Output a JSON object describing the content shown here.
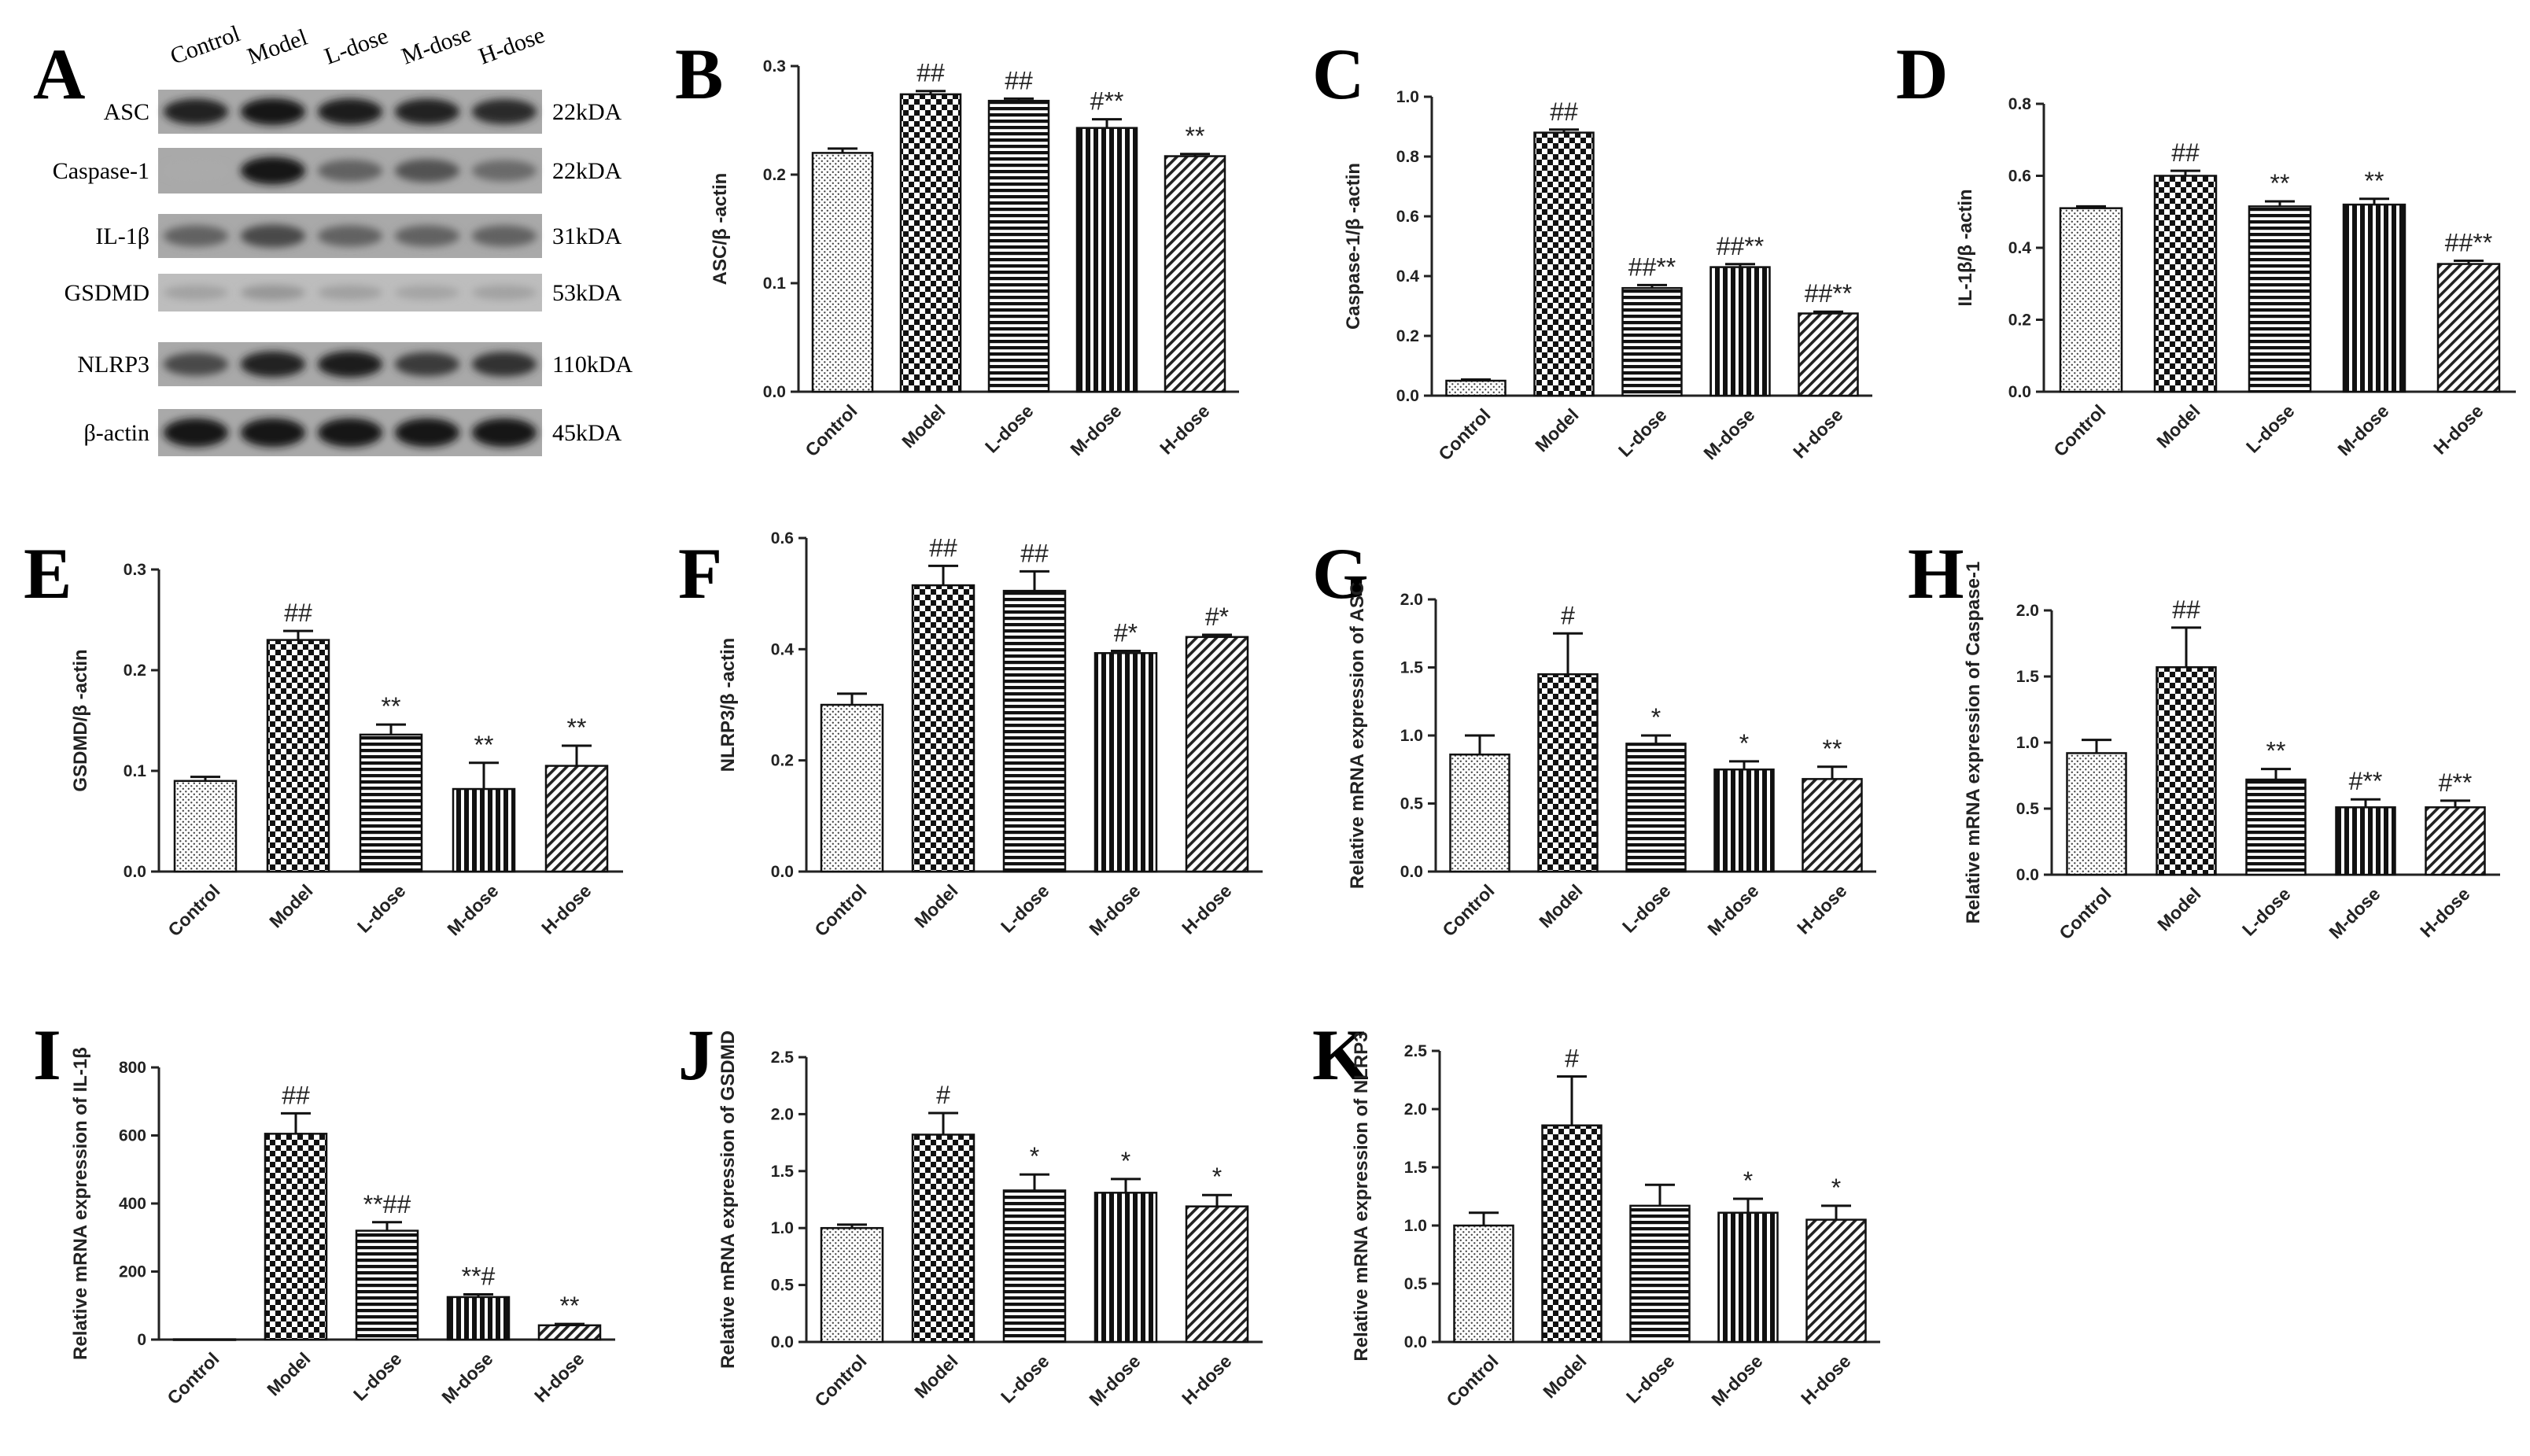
{
  "chart_data": [
    {
      "type": "bar",
      "panel": "B",
      "ylabel": "ASC/β -actin",
      "ylim": [
        0,
        0.3
      ],
      "yticks": [
        0.0,
        0.1,
        0.2,
        0.3
      ],
      "tickFormat": 1,
      "categories": [
        "Control",
        "Model",
        "L-dose",
        "M-dose",
        "H-dose"
      ],
      "values": [
        0.22,
        0.274,
        0.268,
        0.243,
        0.217
      ],
      "errors": [
        0.004,
        0.003,
        0.002,
        0.008,
        0.002
      ],
      "annotations": [
        "",
        "##",
        "##",
        "#**",
        "**"
      ]
    },
    {
      "type": "bar",
      "panel": "C",
      "ylabel": "Caspase-1/β -actin",
      "ylim": [
        0,
        1.0
      ],
      "yticks": [
        0.0,
        0.2,
        0.4,
        0.6,
        0.8,
        1.0
      ],
      "tickFormat": 1,
      "categories": [
        "Control",
        "Model",
        "L-dose",
        "M-dose",
        "H-dose"
      ],
      "values": [
        0.05,
        0.88,
        0.36,
        0.43,
        0.275
      ],
      "errors": [
        0.004,
        0.01,
        0.01,
        0.01,
        0.006
      ],
      "annotations": [
        "",
        "##",
        "##**",
        "##**",
        "##**"
      ]
    },
    {
      "type": "bar",
      "panel": "D",
      "ylabel": "IL-1β/β -actin",
      "ylim": [
        0,
        0.8
      ],
      "yticks": [
        0.0,
        0.2,
        0.4,
        0.6,
        0.8
      ],
      "tickFormat": 1,
      "categories": [
        "Control",
        "Model",
        "L-dose",
        "M-dose",
        "H-dose"
      ],
      "values": [
        0.51,
        0.6,
        0.515,
        0.52,
        0.355
      ],
      "errors": [
        0.005,
        0.014,
        0.014,
        0.016,
        0.009
      ],
      "annotations": [
        "",
        "##",
        "**",
        "**",
        "##**"
      ]
    },
    {
      "type": "bar",
      "panel": "E",
      "ylabel": "GSDMD/β -actin",
      "ylim": [
        0,
        0.3
      ],
      "yticks": [
        0.0,
        0.1,
        0.2,
        0.3
      ],
      "tickFormat": 1,
      "categories": [
        "Control",
        "Model",
        "L-dose",
        "M-dose",
        "H-dose"
      ],
      "values": [
        0.09,
        0.23,
        0.136,
        0.082,
        0.105
      ],
      "errors": [
        0.004,
        0.009,
        0.01,
        0.026,
        0.02
      ],
      "annotations": [
        "",
        "##",
        "**",
        "**",
        "**"
      ]
    },
    {
      "type": "bar",
      "panel": "F",
      "ylabel": "NLRP3/β -actin",
      "ylim": [
        0,
        0.6
      ],
      "yticks": [
        0.0,
        0.2,
        0.4,
        0.6
      ],
      "tickFormat": 1,
      "categories": [
        "Control",
        "Model",
        "L-dose",
        "M-dose",
        "H-dose"
      ],
      "values": [
        0.3,
        0.515,
        0.505,
        0.393,
        0.422
      ],
      "errors": [
        0.02,
        0.035,
        0.035,
        0.004,
        0.004
      ],
      "annotations": [
        "",
        "##",
        "##",
        "#*",
        "#*"
      ]
    },
    {
      "type": "bar",
      "panel": "G",
      "ylabel": "Relative mRNA expression of ASC",
      "ylim": [
        0,
        2.0
      ],
      "yticks": [
        0.0,
        0.5,
        1.0,
        1.5,
        2.0
      ],
      "tickFormat": 1,
      "categories": [
        "Control",
        "Model",
        "L-dose",
        "M-dose",
        "H-dose"
      ],
      "values": [
        0.86,
        1.45,
        0.94,
        0.75,
        0.68
      ],
      "errors": [
        0.14,
        0.3,
        0.06,
        0.06,
        0.09
      ],
      "annotations": [
        "",
        "#",
        "*",
        "*",
        "**"
      ]
    },
    {
      "type": "bar",
      "panel": "H",
      "ylabel": "Relative mRNA expression of Caspase-1",
      "ylim": [
        0,
        2.0
      ],
      "yticks": [
        0.0,
        0.5,
        1.0,
        1.5,
        2.0
      ],
      "tickFormat": 1,
      "categories": [
        "Control",
        "Model",
        "L-dose",
        "M-dose",
        "H-dose"
      ],
      "values": [
        0.92,
        1.57,
        0.72,
        0.51,
        0.51
      ],
      "errors": [
        0.1,
        0.3,
        0.08,
        0.06,
        0.05
      ],
      "annotations": [
        "",
        "##",
        "**",
        "#**",
        "#**"
      ]
    },
    {
      "type": "bar",
      "panel": "I",
      "ylabel": "Relative mRNA expression of IL-1β",
      "ylim": [
        0,
        800
      ],
      "yticks": [
        0,
        200,
        400,
        600,
        800
      ],
      "tickFormat": 0,
      "categories": [
        "Control",
        "Model",
        "L-dose",
        "M-dose",
        "H-dose"
      ],
      "values": [
        1,
        605,
        320,
        125,
        42
      ],
      "errors": [
        0,
        60,
        25,
        8,
        4
      ],
      "annotations": [
        "",
        "##",
        "**##",
        "**#",
        "**"
      ]
    },
    {
      "type": "bar",
      "panel": "J",
      "ylabel": "Relative mRNA expression of GSDMD",
      "ylim": [
        0,
        2.5
      ],
      "yticks": [
        0.0,
        0.5,
        1.0,
        1.5,
        2.0,
        2.5
      ],
      "tickFormat": 1,
      "categories": [
        "Control",
        "Model",
        "L-dose",
        "M-dose",
        "H-dose"
      ],
      "values": [
        1.0,
        1.82,
        1.33,
        1.31,
        1.19
      ],
      "errors": [
        0.03,
        0.19,
        0.14,
        0.12,
        0.1
      ],
      "annotations": [
        "",
        "#",
        "*",
        "*",
        "*"
      ]
    },
    {
      "type": "bar",
      "panel": "K",
      "ylabel": "Relative mRNA expression of NLRP3",
      "ylim": [
        0,
        2.5
      ],
      "yticks": [
        0.0,
        0.5,
        1.0,
        1.5,
        2.0,
        2.5
      ],
      "tickFormat": 1,
      "categories": [
        "Control",
        "Model",
        "L-dose",
        "M-dose",
        "H-dose"
      ],
      "values": [
        1.0,
        1.86,
        1.17,
        1.11,
        1.05
      ],
      "errors": [
        0.11,
        0.42,
        0.18,
        0.12,
        0.12
      ],
      "annotations": [
        "",
        "#",
        "",
        "*",
        "*"
      ]
    }
  ],
  "blot": {
    "panel": "A",
    "lanes": [
      "Control",
      "Model",
      "L-dose",
      "M-dose",
      "H-dose"
    ],
    "rows": [
      {
        "protein": "ASC",
        "size": "22kDA",
        "intensity": [
          0.85,
          0.95,
          0.9,
          0.85,
          0.8
        ]
      },
      {
        "protein": "Caspase-1",
        "size": "22kDA",
        "intensity": [
          0.0,
          0.95,
          0.45,
          0.55,
          0.4
        ]
      },
      {
        "protein": "IL-1β",
        "size": "31kDA",
        "intensity": [
          0.45,
          0.6,
          0.45,
          0.45,
          0.45
        ]
      },
      {
        "protein": "GSDMD",
        "size": "53kDA",
        "intensity": [
          0.05,
          0.12,
          0.06,
          0.04,
          0.05
        ]
      },
      {
        "protein": "NLRP3",
        "size": "110kDA",
        "intensity": [
          0.6,
          0.85,
          0.9,
          0.7,
          0.75
        ]
      },
      {
        "protein": "β-actin",
        "size": "45kDA",
        "intensity": [
          0.95,
          0.95,
          0.95,
          0.95,
          0.95
        ]
      }
    ]
  }
}
